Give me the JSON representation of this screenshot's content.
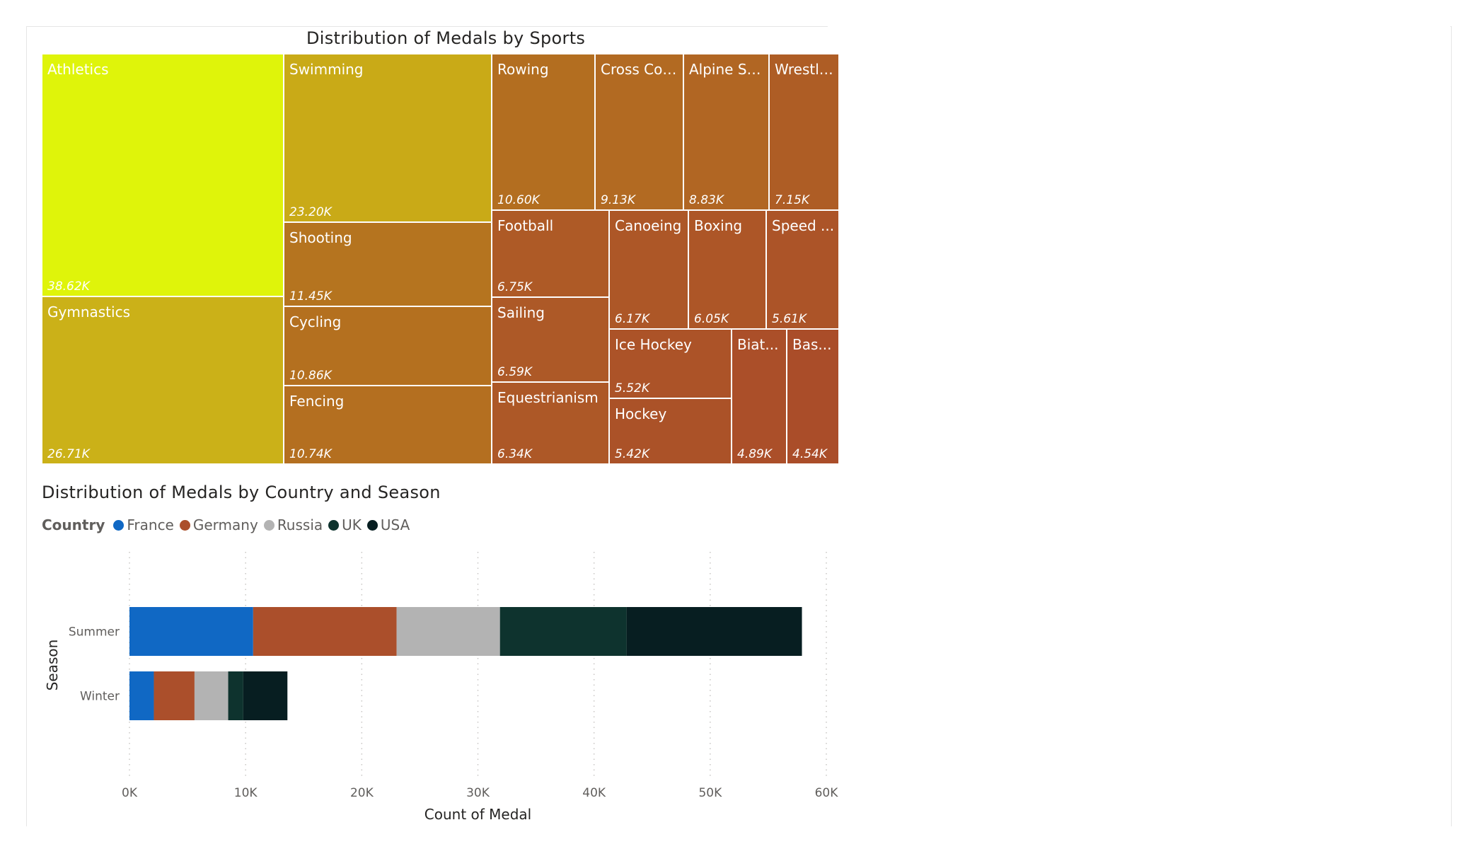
{
  "treemap": {
    "title": "Distribution of Medals by Sports",
    "tiles": [
      {
        "name": "Athletics",
        "value_label": "38.62K",
        "value": 38620,
        "color": "#dff40a"
      },
      {
        "name": "Gymnastics",
        "value_label": "26.71K",
        "value": 26710,
        "color": "#cbb118"
      },
      {
        "name": "Swimming",
        "value_label": "23.20K",
        "value": 23200,
        "color": "#c9aa17"
      },
      {
        "name": "Shooting",
        "value_label": "11.45K",
        "value": 11450,
        "color": "#b5741f"
      },
      {
        "name": "Cycling",
        "value_label": "10.86K",
        "value": 10860,
        "color": "#b4701f"
      },
      {
        "name": "Fencing",
        "value_label": "10.74K",
        "value": 10740,
        "color": "#b46f20"
      },
      {
        "name": "Rowing",
        "value_label": "10.60K",
        "value": 10600,
        "color": "#b36e20"
      },
      {
        "name": "Cross Cou...",
        "value_label": "9.13K",
        "value": 9130,
        "color": "#b26a22"
      },
      {
        "name": "Alpine Sk...",
        "value_label": "8.83K",
        "value": 8830,
        "color": "#b16623"
      },
      {
        "name": "Wrestli...",
        "value_label": "7.15K",
        "value": 7150,
        "color": "#ae5d25"
      },
      {
        "name": "Football",
        "value_label": "6.75K",
        "value": 6750,
        "color": "#ae5a26"
      },
      {
        "name": "Sailing",
        "value_label": "6.59K",
        "value": 6590,
        "color": "#ad5927"
      },
      {
        "name": "Equestrianism",
        "value_label": "6.34K",
        "value": 6340,
        "color": "#ad5827"
      },
      {
        "name": "Canoeing",
        "value_label": "6.17K",
        "value": 6170,
        "color": "#ad5727"
      },
      {
        "name": "Boxing",
        "value_label": "6.05K",
        "value": 6050,
        "color": "#ad5627"
      },
      {
        "name": "Speed ...",
        "value_label": "5.61K",
        "value": 5610,
        "color": "#ac5428"
      },
      {
        "name": "Ice Hockey",
        "value_label": "5.52K",
        "value": 5520,
        "color": "#ac5328"
      },
      {
        "name": "Hockey",
        "value_label": "5.42K",
        "value": 5420,
        "color": "#ab5228"
      },
      {
        "name": "Biat...",
        "value_label": "4.89K",
        "value": 4890,
        "color": "#ab4f29"
      },
      {
        "name": "Bas...",
        "value_label": "4.54K",
        "value": 4540,
        "color": "#aa4d29"
      }
    ]
  },
  "bar_chart": {
    "title": "Distribution of Medals by Country and Season",
    "legend_title": "Country",
    "legend_position": "top-left",
    "xlabel": "Count of Medal",
    "ylabel": "Season",
    "grid": true
  },
  "chart_data": [
    {
      "type": "treemap",
      "title": "Distribution of Medals by Sports",
      "categories": [
        "Athletics",
        "Gymnastics",
        "Swimming",
        "Shooting",
        "Cycling",
        "Fencing",
        "Rowing",
        "Cross Cou...",
        "Alpine Sk...",
        "Wrestli...",
        "Football",
        "Sailing",
        "Equestrianism",
        "Canoeing",
        "Boxing",
        "Speed ...",
        "Ice Hockey",
        "Hockey",
        "Biat...",
        "Bas..."
      ],
      "values": [
        38620,
        26710,
        23200,
        11450,
        10860,
        10740,
        10600,
        9130,
        8830,
        7150,
        6750,
        6590,
        6340,
        6170,
        6050,
        5610,
        5520,
        5420,
        4890,
        4540
      ]
    },
    {
      "type": "bar",
      "orientation": "horizontal",
      "stacked": true,
      "title": "Distribution of Medals by Country and Season",
      "categories": [
        "Summer",
        "Winter"
      ],
      "series": [
        {
          "name": "France",
          "color": "#1068c4",
          "values": [
            10650,
            2100
          ]
        },
        {
          "name": "Germany",
          "color": "#ab4f2b",
          "values": [
            12350,
            3500
          ]
        },
        {
          "name": "Russia",
          "color": "#b3b3b3",
          "values": [
            8900,
            2900
          ]
        },
        {
          "name": "UK",
          "color": "#0e332e",
          "values": [
            10900,
            1300
          ]
        },
        {
          "name": "USA",
          "color": "#071e21",
          "values": [
            15100,
            3800
          ]
        }
      ],
      "xlabel": "Count of Medal",
      "ylabel": "Season",
      "xlim": [
        0,
        60000
      ],
      "xticks": [
        0,
        10000,
        20000,
        30000,
        40000,
        50000,
        60000
      ],
      "xtick_labels": [
        "0K",
        "10K",
        "20K",
        "30K",
        "40K",
        "50K",
        "60K"
      ],
      "grid": true,
      "legend": "top-left"
    }
  ]
}
